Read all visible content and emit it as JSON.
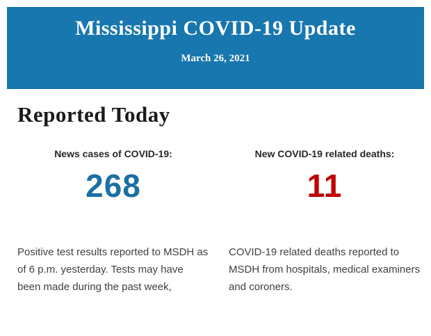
{
  "header": {
    "title": "Mississippi COVID-19 Update",
    "date": "March 26, 2021",
    "background_color": "#1777AE",
    "text_color": "#FFFFFF"
  },
  "body": {
    "heading": "Reported Today",
    "stats": [
      {
        "label": "News cases of COVID-19:",
        "value": "268",
        "value_color": "#1B6FA5",
        "description": "Positive test results reported to MSDH as of 6 p.m. yesterday. Tests may have been made during the past week,"
      },
      {
        "label": "New COVID-19 related deaths:",
        "value": "11",
        "value_color": "#C00000",
        "description": "COVID-19 related deaths reported to MSDH from hospitals, medical examiners and coroners."
      }
    ]
  }
}
